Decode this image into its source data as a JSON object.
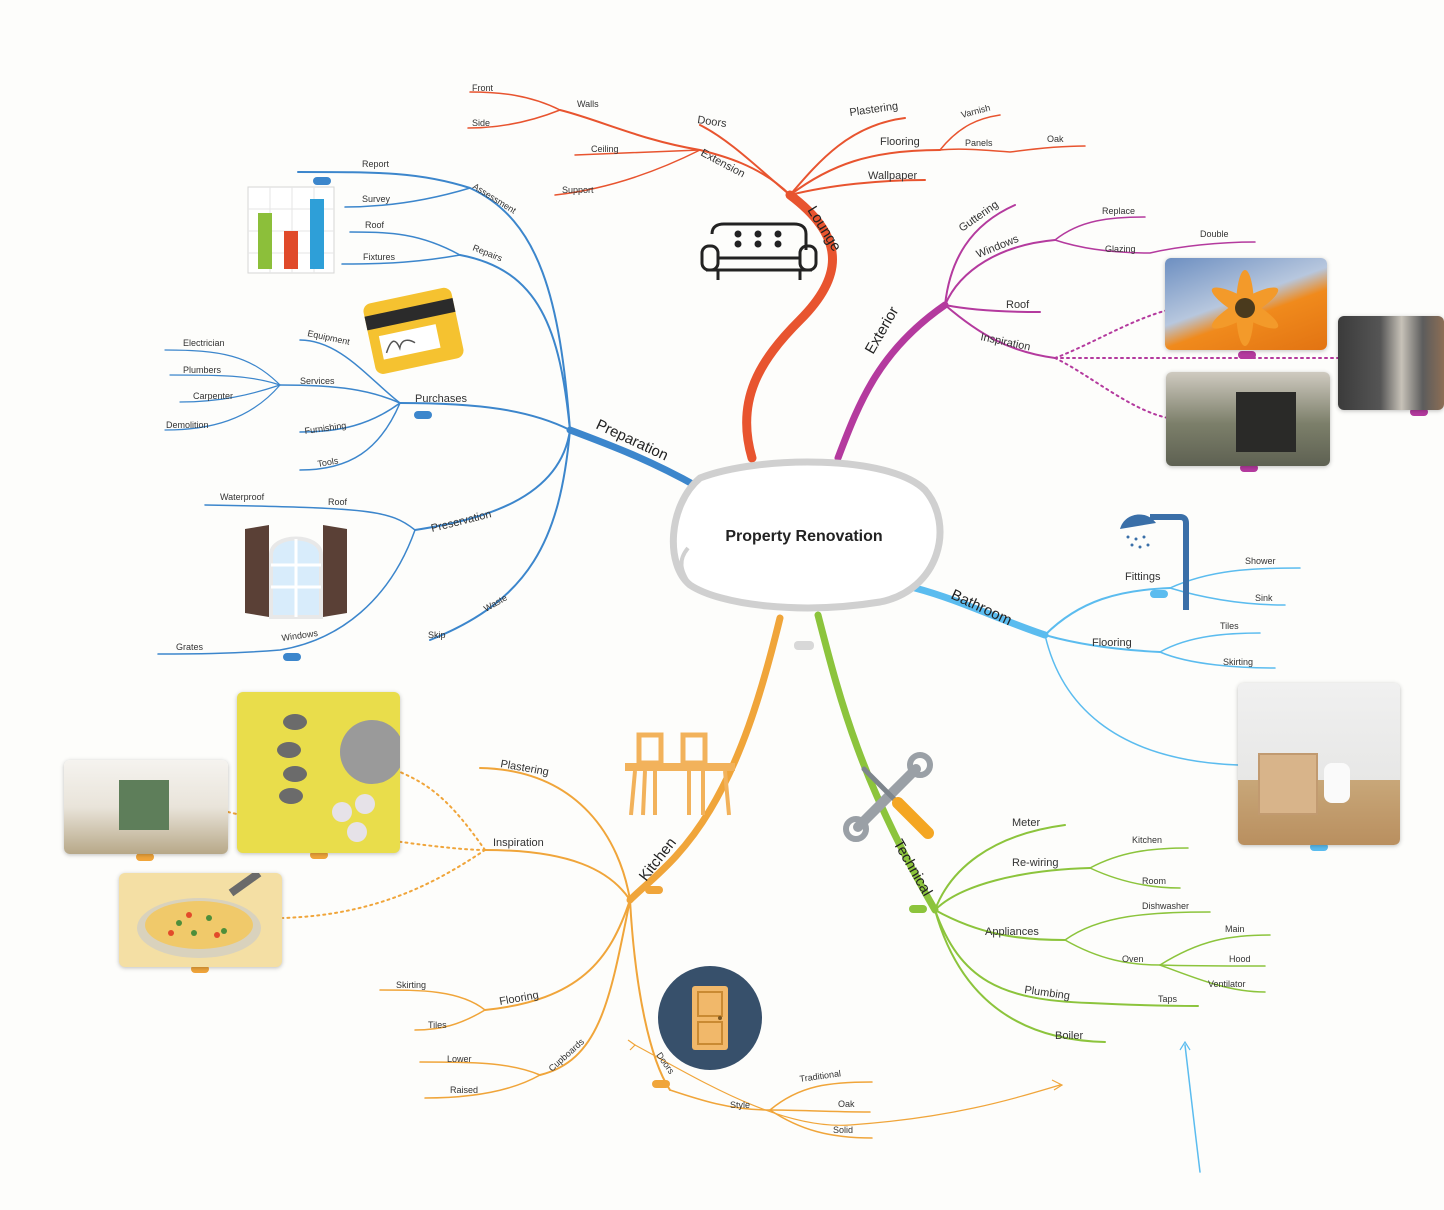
{
  "center": {
    "title": "Property Renovation"
  },
  "colors": {
    "lounge": "#e8542f",
    "exterior": "#b43a9e",
    "bathroom": "#5bbcef",
    "technical": "#8cc43c",
    "kitchen": "#f0a53a",
    "preparation": "#3c86cc"
  },
  "lounge": {
    "label": "Lounge",
    "doors": "Doors",
    "extension": "Extension",
    "walls": "Walls",
    "front": "Front",
    "side": "Side",
    "ceiling": "Ceiling",
    "support": "Support",
    "plastering": "Plastering",
    "flooring": "Flooring",
    "varnish": "Varnish",
    "panels": "Panels",
    "oak": "Oak",
    "wallpaper": "Wallpaper"
  },
  "exterior": {
    "label": "Exterior",
    "guttering": "Guttering",
    "windows": "Windows",
    "replace": "Replace",
    "glazing": "Glazing",
    "double": "Double",
    "roof": "Roof",
    "inspiration": "Inspiration"
  },
  "bathroom": {
    "label": "Bathroom",
    "fittings": "Fittings",
    "shower": "Shower",
    "sink": "Sink",
    "flooring": "Flooring",
    "tiles": "Tiles",
    "skirting": "Skirting"
  },
  "technical": {
    "label": "Technical",
    "meter": "Meter",
    "rewiring": "Re-wiring",
    "kitchen": "Kitchen",
    "room": "Room",
    "appliances": "Appliances",
    "dishwasher": "Dishwasher",
    "oven": "Oven",
    "main": "Main",
    "hood": "Hood",
    "ventilator": "Ventilator",
    "plumbing": "Plumbing",
    "taps": "Taps",
    "boiler": "Boiler"
  },
  "kitchen": {
    "label": "Kitchen",
    "plastering": "Plastering",
    "inspiration": "Inspiration",
    "flooring": "Flooring",
    "skirting": "Skirting",
    "tiles": "Tiles",
    "cupboards": "Cupboards",
    "lower": "Lower",
    "raised": "Raised",
    "doors": "Doors",
    "style": "Style",
    "traditional": "Traditional",
    "oak": "Oak",
    "solid": "Solid"
  },
  "preparation": {
    "label": "Preparation",
    "assessment": "Assessment",
    "report": "Report",
    "survey": "Survey",
    "repairs": "Repairs",
    "roof": "Roof",
    "fixtures": "Fixtures",
    "purchases": "Purchases",
    "equipment": "Equipment",
    "services": "Services",
    "electrician": "Electrician",
    "plumbers": "Plumbers",
    "carpenter": "Carpenter",
    "demolition": "Demolition",
    "furnishing": "Furnishing",
    "tools": "Tools",
    "preservation": "Preservation",
    "roof2": "Roof",
    "waterproof": "Waterproof",
    "windows": "Windows",
    "grates": "Grates",
    "waste": "Waste",
    "skip": "Skip"
  }
}
